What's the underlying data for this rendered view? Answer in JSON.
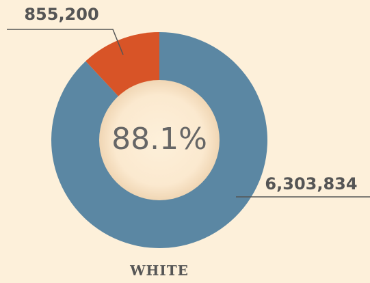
{
  "chart_data": {
    "type": "donut",
    "title": "WHITE",
    "center_label": "88.1%",
    "values": [
      6303834,
      855200
    ],
    "value_labels": [
      "6,303,834",
      "855,200"
    ],
    "colors": [
      "#5b87a3",
      "#d85427"
    ]
  }
}
